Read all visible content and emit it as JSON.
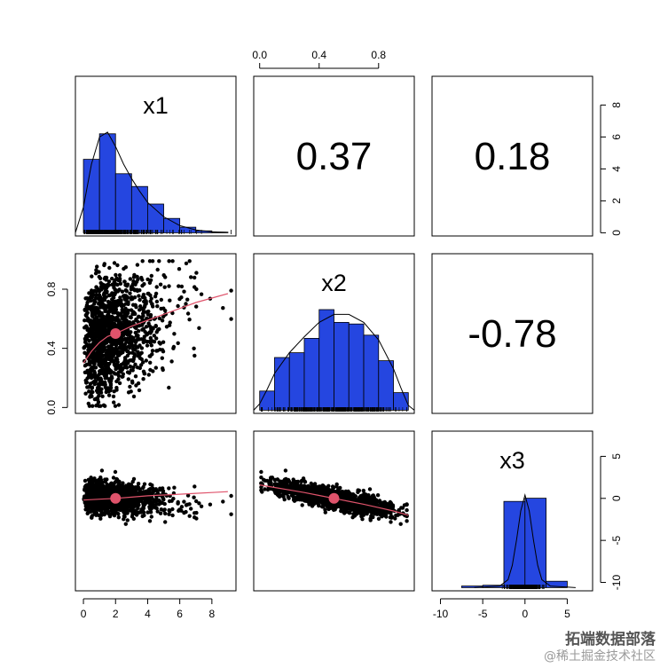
{
  "chart_data": {
    "type": "pairs",
    "variables": [
      "x1",
      "x2",
      "x3"
    ],
    "correlations": [
      {
        "row": 1,
        "col": 2,
        "value": "0.37"
      },
      {
        "row": 1,
        "col": 3,
        "value": "0.18"
      },
      {
        "row": 2,
        "col": 3,
        "value": "-0.78"
      }
    ],
    "axes": {
      "x1": {
        "range": [
          -0.5,
          9.5
        ],
        "ticks": [
          "0",
          "2",
          "4",
          "6",
          "8"
        ]
      },
      "x2": {
        "range": [
          -0.04,
          1.04
        ],
        "ticks": [
          "0.0",
          "0.4",
          "0.8"
        ]
      },
      "x3": {
        "range": [
          -11,
          8
        ],
        "ticks": [
          "-10",
          "-5",
          "0",
          "5"
        ]
      },
      "hist_density": {
        "range": [
          -0.5,
          9.5
        ],
        "ticks": [
          "0",
          "2",
          "4",
          "6",
          "8"
        ]
      }
    },
    "histograms": {
      "x1": {
        "breaks": [
          0,
          1,
          2,
          3,
          4,
          5,
          6,
          7,
          8,
          9
        ],
        "heights": [
          4.6,
          6.2,
          3.7,
          2.9,
          1.8,
          0.9,
          0.35,
          0.12,
          0.04
        ],
        "density_x": [
          -0.5,
          0,
          0.5,
          1,
          1.5,
          2,
          2.5,
          3,
          3.5,
          4,
          5,
          6,
          7,
          8,
          9
        ],
        "density_y": [
          0.0,
          1.6,
          4.3,
          6.0,
          6.3,
          5.4,
          4.3,
          3.4,
          2.6,
          1.9,
          1.0,
          0.45,
          0.18,
          0.06,
          0.02
        ]
      },
      "x2": {
        "breaks": [
          0,
          0.1,
          0.2,
          0.3,
          0.4,
          0.5,
          0.6,
          0.7,
          0.8,
          0.9,
          1.0
        ],
        "heights": [
          1.2,
          3.3,
          3.6,
          4.5,
          6.3,
          5.5,
          5.4,
          4.7,
          3.1,
          1.1
        ],
        "density_x": [
          -0.04,
          0,
          0.05,
          0.1,
          0.2,
          0.3,
          0.4,
          0.5,
          0.6,
          0.7,
          0.8,
          0.9,
          0.95,
          1.0,
          1.04
        ],
        "density_y": [
          0.0,
          0.4,
          1.3,
          2.3,
          3.6,
          4.6,
          5.5,
          6.0,
          6.0,
          5.5,
          4.4,
          2.6,
          1.4,
          0.3,
          0.0
        ]
      },
      "x3": {
        "breaks": [
          -7.5,
          -5,
          -2.5,
          0,
          2.5,
          5
        ],
        "heights": [
          0.1,
          0.15,
          5.4,
          5.6,
          0.4
        ],
        "density_x": [
          -6,
          -3,
          -2,
          -1.5,
          -1,
          -0.5,
          0,
          0.5,
          1,
          1.5,
          2,
          3,
          6
        ],
        "density_y": [
          0.0,
          0.1,
          0.5,
          1.4,
          3.0,
          4.8,
          5.8,
          4.8,
          3.0,
          1.4,
          0.5,
          0.1,
          0.0
        ]
      }
    },
    "smoothers": {
      "x2_vs_x1": {
        "x": [
          0,
          0.5,
          1,
          1.5,
          2,
          3,
          4,
          5,
          6,
          7,
          8,
          9
        ],
        "y": [
          0.3,
          0.38,
          0.44,
          0.48,
          0.5,
          0.55,
          0.59,
          0.63,
          0.67,
          0.71,
          0.74,
          0.77
        ],
        "center": [
          2.0,
          0.5
        ]
      },
      "x3_vs_x1": {
        "x": [
          0,
          1,
          2,
          3,
          4,
          5,
          6,
          7,
          8,
          9
        ],
        "y": [
          -0.2,
          -0.1,
          0.0,
          0.15,
          0.3,
          0.4,
          0.5,
          0.6,
          0.7,
          0.8
        ],
        "center": [
          2.0,
          0.0
        ]
      },
      "x3_vs_x2": {
        "x": [
          0,
          0.1,
          0.2,
          0.3,
          0.4,
          0.5,
          0.6,
          0.7,
          0.8,
          0.9,
          1.0
        ],
        "y": [
          1.6,
          1.3,
          1.0,
          0.7,
          0.35,
          0.0,
          -0.35,
          -0.7,
          -1.1,
          -1.5,
          -2.0
        ],
        "center": [
          0.5,
          0.0
        ]
      }
    },
    "colors": {
      "bars": "#2546e0",
      "smoother": "#df536b",
      "points": "#000000"
    }
  },
  "watermark": {
    "line1": "拓端数据部落",
    "line2": "@稀土掘金技术社区"
  }
}
